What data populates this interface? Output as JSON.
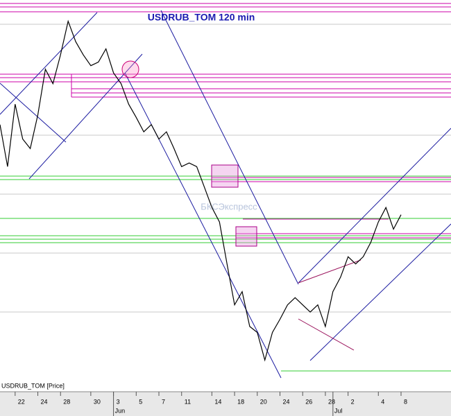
{
  "chart_data": {
    "type": "line",
    "title": "USDRUB_TOM 120 min",
    "watermark": "БКСЭкспресс",
    "series_label": "USDRUB_TOM [Price]",
    "color": "#000000",
    "ylim": [
      62.8,
      65.8
    ],
    "categories": [
      null,
      null,
      "22",
      null,
      null,
      "24",
      null,
      null,
      "28",
      null,
      null,
      null,
      "30",
      null,
      null,
      "3",
      null,
      null,
      "5",
      null,
      null,
      "7",
      null,
      null,
      "11",
      null,
      null,
      null,
      "14",
      null,
      null,
      "18",
      null,
      null,
      "20",
      null,
      null,
      "24",
      null,
      null,
      "26",
      null,
      null,
      "28",
      null,
      null,
      "2",
      null,
      null,
      null,
      "4",
      null,
      null,
      "8"
    ],
    "months": [
      null,
      null,
      null,
      null,
      null,
      null,
      null,
      null,
      null,
      null,
      null,
      null,
      null,
      null,
      null,
      "Jun",
      null,
      null,
      null,
      null,
      null,
      null,
      null,
      null,
      null,
      null,
      null,
      null,
      null,
      null,
      null,
      null,
      null,
      null,
      null,
      null,
      null,
      null,
      null,
      null,
      null,
      null,
      null,
      null,
      "Jul",
      null,
      null,
      null,
      null,
      null,
      null,
      null,
      null,
      null
    ],
    "values": [
      64.85,
      64.5,
      65.02,
      64.73,
      64.65,
      64.93,
      65.31,
      65.19,
      65.43,
      65.71,
      65.54,
      65.43,
      65.34,
      65.37,
      65.48,
      65.28,
      65.19,
      65.02,
      64.91,
      64.79,
      64.85,
      64.73,
      64.79,
      64.65,
      64.5,
      64.53,
      64.5,
      64.33,
      64.16,
      64.04,
      63.69,
      63.35,
      63.46,
      63.17,
      63.12,
      62.89,
      63.12,
      63.23,
      63.35,
      63.41,
      63.35,
      63.29,
      63.35,
      63.17,
      63.46,
      63.58,
      63.75,
      63.69,
      63.75,
      63.87,
      64.04,
      64.16,
      63.98,
      64.1
    ]
  }
}
